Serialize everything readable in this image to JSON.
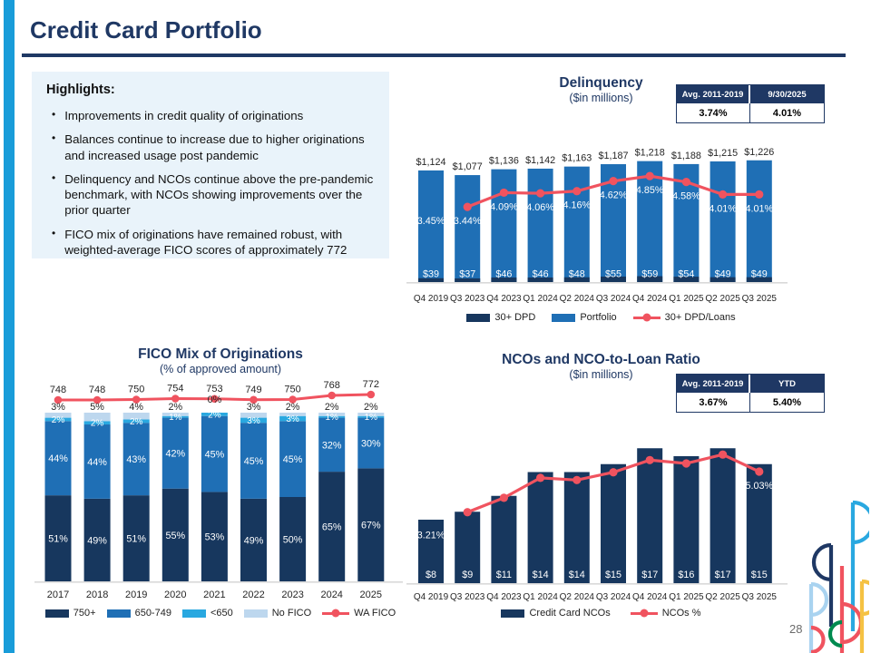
{
  "slide": {
    "title": "Credit Card Portfolio",
    "page_number": "28"
  },
  "highlights": {
    "heading": "Highlights:",
    "bullets": [
      "Improvements in credit quality of originations",
      "Balances continue to increase due to higher originations and increased usage post pandemic",
      "Delinquency and NCOs continue above the pre-pandemic benchmark, with NCOs showing improvements over the prior quarter",
      "FICO mix of originations have remained robust, with weighted-average FICO scores of approximately 772"
    ]
  },
  "chart_data": [
    {
      "id": "delinquency",
      "type": "bar+line",
      "title": "Delinquency",
      "subtitle": "($in millions)",
      "categories": [
        "Q4 2019",
        "Q3 2023",
        "Q4 2023",
        "Q1 2024",
        "Q2 2024",
        "Q3 2024",
        "Q4 2024",
        "Q1 2025",
        "Q2 2025",
        "Q3 2025"
      ],
      "series": [
        {
          "name": "Portfolio",
          "type": "bar",
          "color": "#1F6FB5",
          "values": [
            1124,
            1077,
            1136,
            1142,
            1163,
            1187,
            1218,
            1188,
            1215,
            1226
          ],
          "labels": [
            "$1,124",
            "$1,077",
            "$1,136",
            "$1,142",
            "$1,163",
            "$1,187",
            "$1,218",
            "$1,188",
            "$1,215",
            "$1,226"
          ]
        },
        {
          "name": "30+ DPD",
          "type": "bar",
          "color": "#17375E",
          "values": [
            39,
            37,
            46,
            46,
            48,
            55,
            59,
            54,
            49,
            49
          ],
          "labels": [
            "$39",
            "$37",
            "$46",
            "$46",
            "$48",
            "$55",
            "$59",
            "$54",
            "$49",
            "$49"
          ]
        },
        {
          "name": "30+ DPD/Loans",
          "type": "line",
          "color": "#F0535F",
          "line_starts_at_index": 1,
          "values": [
            3.45,
            3.44,
            4.09,
            4.06,
            4.16,
            4.62,
            4.85,
            4.58,
            4.01,
            4.01
          ],
          "labels": [
            "3.45%",
            "3.44%",
            "4.09%",
            "4.06%",
            "4.16%",
            "4.62%",
            "4.85%",
            "4.58%",
            "4.01%",
            "4.01%"
          ]
        }
      ],
      "legend": [
        {
          "label": "30+ DPD",
          "color": "#17375E",
          "glyph": "swatch"
        },
        {
          "label": "Portfolio",
          "color": "#1F6FB5",
          "glyph": "swatch"
        },
        {
          "label": "30+ DPD/Loans",
          "color": "#F0535F",
          "glyph": "line"
        }
      ],
      "stat_table": {
        "headers": [
          "Avg. 2011-2019",
          "9/30/2025"
        ],
        "values": [
          "3.74%",
          "4.01%"
        ]
      }
    },
    {
      "id": "fico-mix",
      "type": "stacked-bar+line",
      "title": "FICO Mix of Originations",
      "subtitle": "(% of approved amount)",
      "categories": [
        "2017",
        "2018",
        "2019",
        "2020",
        "2021",
        "2022",
        "2023",
        "2024",
        "2025"
      ],
      "series": [
        {
          "name": "750+",
          "type": "bar",
          "color": "#17375E",
          "values": [
            51,
            49,
            51,
            55,
            53,
            49,
            50,
            65,
            67
          ],
          "labels": [
            "51%",
            "49%",
            "51%",
            "55%",
            "53%",
            "49%",
            "50%",
            "65%",
            "67%"
          ]
        },
        {
          "name": "650-749",
          "type": "bar",
          "color": "#1F6FB5",
          "values": [
            44,
            44,
            43,
            42,
            45,
            45,
            45,
            32,
            30
          ],
          "labels": [
            "44%",
            "44%",
            "43%",
            "42%",
            "45%",
            "45%",
            "45%",
            "32%",
            "30%"
          ]
        },
        {
          "name": "<650",
          "type": "bar",
          "color": "#29A8E0",
          "values": [
            2,
            2,
            2,
            1,
            2,
            3,
            3,
            1,
            1
          ],
          "labels": [
            "2%",
            "2%",
            "2%",
            "1%",
            "2%",
            "3%",
            "3%",
            "1%",
            "1%"
          ]
        },
        {
          "name": "No FICO",
          "type": "bar",
          "color": "#BDD7EE",
          "values": [
            3,
            5,
            4,
            2,
            0,
            3,
            2,
            2,
            2
          ],
          "labels": [
            "3%",
            "5%",
            "4%",
            "2%",
            "0%",
            "3%",
            "2%",
            "2%",
            "2%"
          ]
        },
        {
          "name": "WA FICO",
          "type": "line",
          "color": "#F0535F",
          "values": [
            748,
            748,
            750,
            754,
            753,
            749,
            750,
            768,
            772
          ],
          "labels": [
            "748",
            "748",
            "750",
            "754",
            "753",
            "749",
            "750",
            "768",
            "772"
          ]
        }
      ],
      "legend": [
        {
          "label": "750+",
          "color": "#17375E",
          "glyph": "swatch"
        },
        {
          "label": "650-749",
          "color": "#1F6FB5",
          "glyph": "swatch"
        },
        {
          "label": "<650",
          "color": "#29A8E0",
          "glyph": "swatch"
        },
        {
          "label": "No FICO",
          "color": "#BDD7EE",
          "glyph": "swatch"
        },
        {
          "label": "WA FICO",
          "color": "#F0535F",
          "glyph": "line"
        }
      ]
    },
    {
      "id": "nco",
      "type": "bar+line",
      "title": "NCOs and NCO-to-Loan Ratio",
      "subtitle": "($in millions)",
      "categories": [
        "Q4 2019",
        "Q3 2023",
        "Q4 2023",
        "Q1 2024",
        "Q2 2024",
        "Q3 2024",
        "Q4 2024",
        "Q1 2025",
        "Q2 2025",
        "Q3 2025"
      ],
      "series": [
        {
          "name": "Credit Card NCOs",
          "type": "bar",
          "color": "#17375E",
          "values": [
            8,
            9,
            11,
            14,
            14,
            15,
            17,
            16,
            17,
            15
          ],
          "labels": [
            "$8",
            "$9",
            "$11",
            "$14",
            "$14",
            "$15",
            "$17",
            "$16",
            "$17",
            "$15"
          ]
        },
        {
          "name": "NCOs %",
          "type": "line",
          "color": "#F0535F",
          "line_starts_at_index": 1,
          "values": [
            3.21,
            3.2,
            3.85,
            4.75,
            4.65,
            5.0,
            5.55,
            5.4,
            5.8,
            5.03
          ],
          "labels": [
            "3.21%",
            null,
            null,
            null,
            null,
            null,
            null,
            null,
            null,
            "5.03%"
          ]
        }
      ],
      "legend": [
        {
          "label": "Credit Card NCOs",
          "color": "#17375E",
          "glyph": "swatch"
        },
        {
          "label": "NCOs %",
          "color": "#F0535F",
          "glyph": "line"
        }
      ],
      "stat_table": {
        "headers": [
          "Avg. 2011-2019",
          "YTD"
        ],
        "values": [
          "3.67%",
          "5.40%"
        ]
      }
    }
  ]
}
